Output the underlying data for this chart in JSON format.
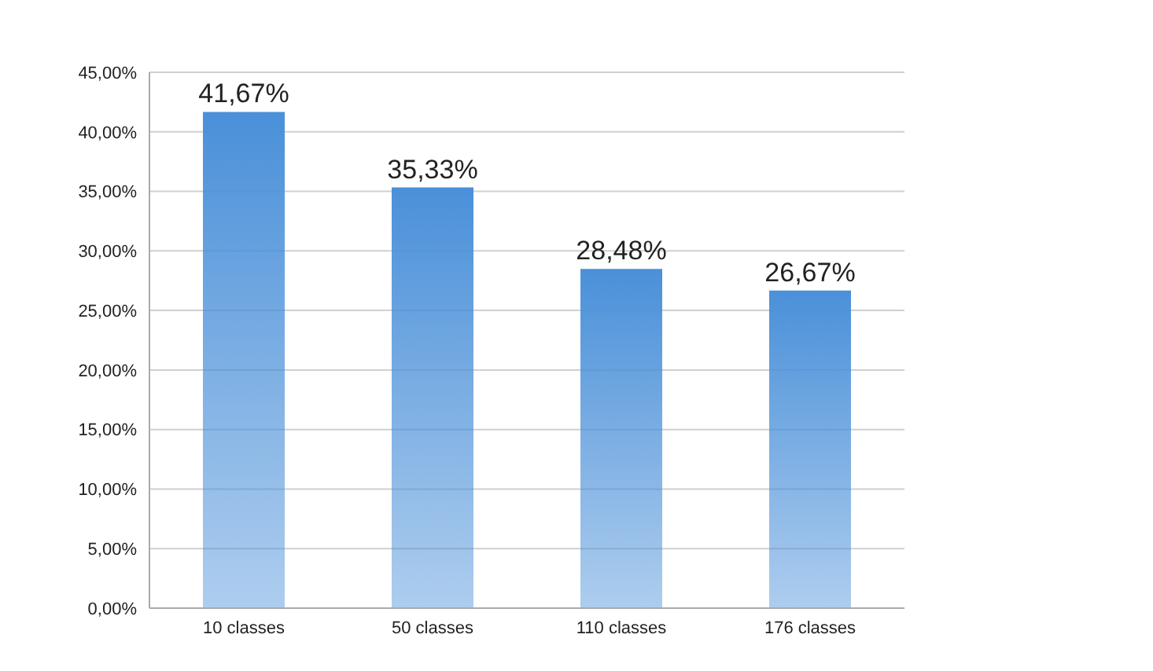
{
  "chart_data": {
    "type": "bar",
    "categories": [
      "10 classes",
      "50 classes",
      "110 classes",
      "176 classes"
    ],
    "values": [
      41.67,
      35.33,
      28.48,
      26.67
    ],
    "value_labels": [
      "41,67%",
      "35,33%",
      "28,48%",
      "26,67%"
    ],
    "color": "#4a90d9",
    "ylim": [
      0,
      45
    ],
    "yticks": [
      {
        "value": 0,
        "label": "0,00%"
      },
      {
        "value": 5,
        "label": "5,00%"
      },
      {
        "value": 10,
        "label": "10,00%"
      },
      {
        "value": 15,
        "label": "15,00%"
      },
      {
        "value": 20,
        "label": "20,00%"
      },
      {
        "value": 25,
        "label": "25,00%"
      },
      {
        "value": 30,
        "label": "30,00%"
      },
      {
        "value": 35,
        "label": "35,00%"
      },
      {
        "value": 40,
        "label": "40,00%"
      },
      {
        "value": 45,
        "label": "45,00%"
      }
    ],
    "grid": "y"
  }
}
